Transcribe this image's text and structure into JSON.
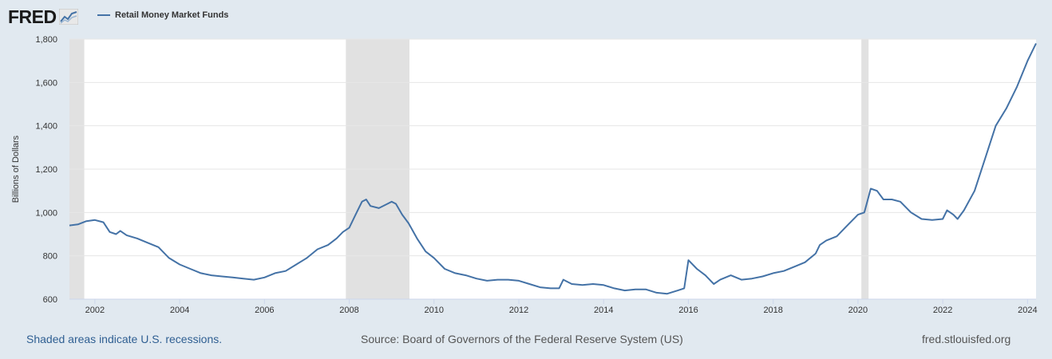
{
  "header": {
    "logo_text": "FRED",
    "legend_label": "Retail Money Market Funds"
  },
  "footer": {
    "recession_note": "Shaded areas indicate U.S. recessions.",
    "source": "Source: Board of Governors of the Federal Reserve System (US)",
    "url": "fred.stlouisfed.org"
  },
  "colors": {
    "series": "#4472a6",
    "recession": "#e1e1e1",
    "background": "#e1e9f0",
    "plot": "#ffffff"
  },
  "chart_data": {
    "type": "line",
    "title": "Retail Money Market Funds",
    "xlabel": "",
    "ylabel": "Billions of Dollars",
    "xlim": [
      2001.4,
      2024.2
    ],
    "ylim": [
      600,
      1800
    ],
    "grid": true,
    "legend_position": "top-left",
    "x_ticks": [
      2002,
      2004,
      2006,
      2008,
      2010,
      2012,
      2014,
      2016,
      2018,
      2020,
      2022,
      2024
    ],
    "x_tick_labels": [
      "2002",
      "2004",
      "2006",
      "2008",
      "2010",
      "2012",
      "2014",
      "2016",
      "2018",
      "2020",
      "2022",
      "2024"
    ],
    "y_ticks": [
      600,
      800,
      1000,
      1200,
      1400,
      1600,
      1800
    ],
    "y_tick_labels": [
      "600",
      "800",
      "1,000",
      "1,200",
      "1,400",
      "1,600",
      "1,800"
    ],
    "recessions": [
      {
        "start": 2001.4,
        "end": 2001.75
      },
      {
        "start": 2007.92,
        "end": 2009.42
      },
      {
        "start": 2020.08,
        "end": 2020.25
      }
    ],
    "series": [
      {
        "name": "Retail Money Market Funds",
        "x": [
          2001.4,
          2001.6,
          2001.8,
          2002.0,
          2002.2,
          2002.35,
          2002.5,
          2002.6,
          2002.75,
          2003.0,
          2003.25,
          2003.5,
          2003.75,
          2004.0,
          2004.25,
          2004.5,
          2004.75,
          2005.0,
          2005.25,
          2005.5,
          2005.75,
          2006.0,
          2006.25,
          2006.5,
          2006.75,
          2007.0,
          2007.25,
          2007.5,
          2007.7,
          2007.85,
          2008.0,
          2008.15,
          2008.3,
          2008.4,
          2008.5,
          2008.7,
          2008.9,
          2009.0,
          2009.1,
          2009.25,
          2009.4,
          2009.6,
          2009.8,
          2010.0,
          2010.25,
          2010.5,
          2010.75,
          2011.0,
          2011.25,
          2011.5,
          2011.75,
          2012.0,
          2012.25,
          2012.5,
          2012.75,
          2012.95,
          2013.05,
          2013.25,
          2013.5,
          2013.75,
          2014.0,
          2014.25,
          2014.5,
          2014.75,
          2015.0,
          2015.25,
          2015.5,
          2015.75,
          2015.9,
          2016.0,
          2016.2,
          2016.4,
          2016.6,
          2016.75,
          2017.0,
          2017.25,
          2017.5,
          2017.75,
          2018.0,
          2018.25,
          2018.5,
          2018.75,
          2019.0,
          2019.1,
          2019.25,
          2019.5,
          2019.75,
          2020.0,
          2020.15,
          2020.3,
          2020.45,
          2020.6,
          2020.8,
          2021.0,
          2021.25,
          2021.5,
          2021.75,
          2022.0,
          2022.1,
          2022.25,
          2022.35,
          2022.5,
          2022.75,
          2023.0,
          2023.25,
          2023.5,
          2023.75,
          2024.0,
          2024.2
        ],
        "values": [
          940,
          945,
          960,
          965,
          955,
          910,
          900,
          915,
          895,
          880,
          860,
          840,
          790,
          760,
          740,
          720,
          710,
          705,
          700,
          695,
          690,
          700,
          720,
          730,
          760,
          790,
          830,
          850,
          880,
          910,
          930,
          990,
          1050,
          1060,
          1030,
          1020,
          1040,
          1050,
          1040,
          990,
          950,
          880,
          820,
          790,
          740,
          720,
          710,
          695,
          685,
          690,
          690,
          685,
          670,
          655,
          650,
          650,
          690,
          670,
          665,
          670,
          665,
          650,
          640,
          645,
          645,
          630,
          625,
          640,
          650,
          780,
          740,
          710,
          670,
          690,
          710,
          690,
          695,
          705,
          720,
          730,
          750,
          770,
          810,
          850,
          870,
          890,
          940,
          990,
          1000,
          1110,
          1100,
          1060,
          1060,
          1050,
          1000,
          970,
          965,
          970,
          1010,
          990,
          970,
          1010,
          1100,
          1250,
          1400,
          1480,
          1580,
          1700,
          1780
        ]
      }
    ]
  }
}
